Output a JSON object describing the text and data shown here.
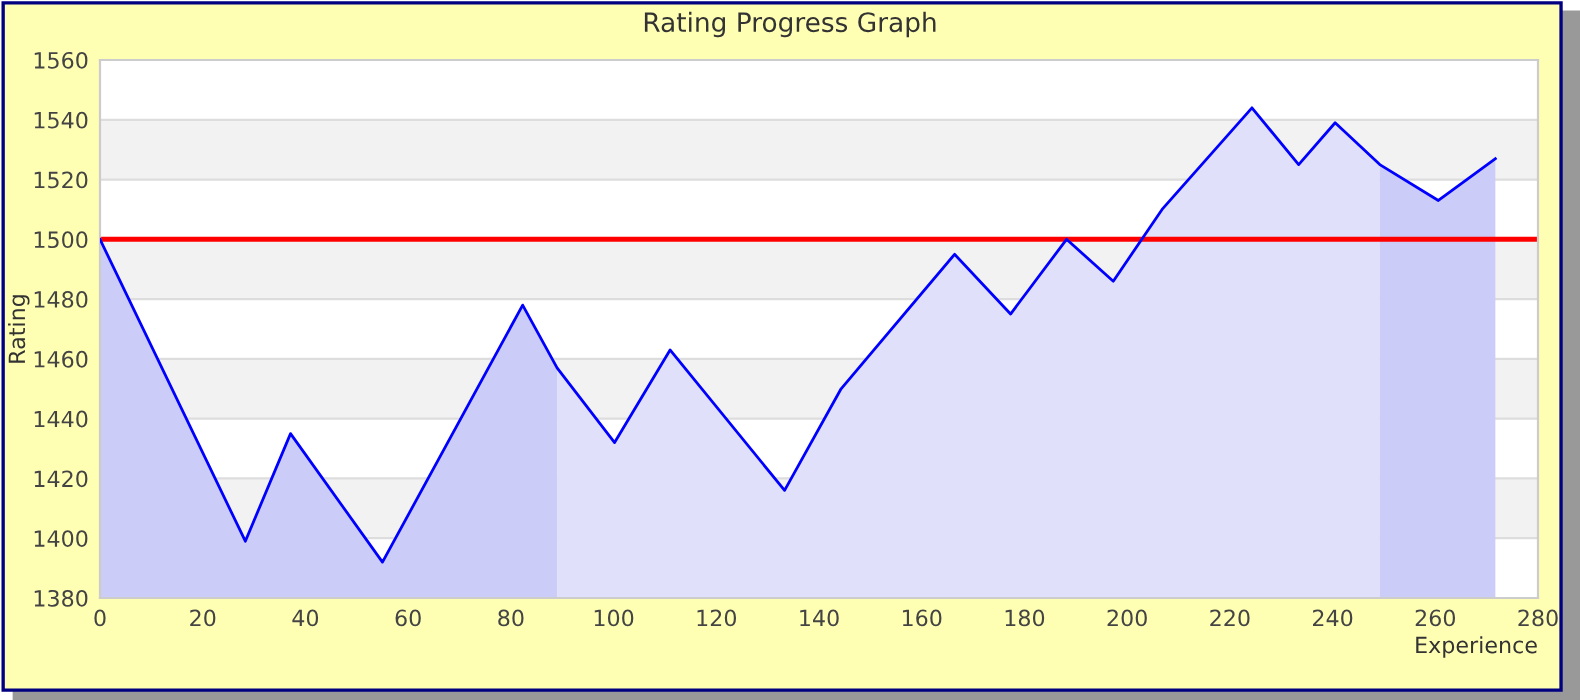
{
  "chart_data": {
    "type": "area",
    "title": "Rating Progress Graph",
    "xlabel": "Experience",
    "ylabel": "Rating",
    "xlim": [
      0,
      280
    ],
    "xticks": [
      0,
      20,
      40,
      60,
      80,
      100,
      120,
      140,
      160,
      180,
      200,
      220,
      240,
      260,
      280
    ],
    "ylim": [
      1380,
      1560
    ],
    "yticks": [
      1380,
      1400,
      1420,
      1440,
      1460,
      1480,
      1500,
      1520,
      1540,
      1560
    ],
    "grid": "y",
    "legend": false,
    "series": [
      {
        "color": "#ccccf8",
        "x": [
          0,
          28.3,
          37.1,
          55,
          82.3,
          89
        ],
        "values": [
          1500,
          1399,
          1435,
          1392,
          1478,
          1457
        ]
      },
      {
        "color": "#e0e0fa",
        "x": [
          89,
          100.2,
          111,
          133.3,
          144.3,
          166.4,
          177.3,
          188.2,
          197.3,
          206.8,
          224.3,
          233.4,
          240.5,
          249.2
        ],
        "values": [
          1457,
          1432,
          1463,
          1416,
          1450,
          1495,
          1475,
          1500,
          1486,
          1510,
          1544,
          1525,
          1539,
          1525
        ]
      },
      {
        "color": "#ccccf8",
        "x": [
          249.2,
          260.6,
          271.7
        ],
        "values": [
          1525,
          1513,
          1527
        ]
      },
      {
        "type": "line",
        "color": "#0000ff",
        "x": [
          0,
          28.3,
          37.1,
          55,
          82.3,
          89,
          100.2,
          111,
          133.3,
          144.3,
          166.4,
          177.3,
          188.2,
          197.3,
          206.8,
          224.3,
          233.4,
          240.5,
          249.2,
          260.6,
          271.7
        ],
        "values": [
          1500,
          1399,
          1435,
          1392,
          1478,
          1457,
          1432,
          1463,
          1416,
          1450,
          1495,
          1475,
          1500,
          1486,
          1510,
          1544,
          1525,
          1539,
          1525,
          1513,
          1527
        ]
      }
    ],
    "ref_lines": [
      {
        "axis": "y",
        "value": 1500,
        "color": "#ff0000"
      }
    ]
  }
}
